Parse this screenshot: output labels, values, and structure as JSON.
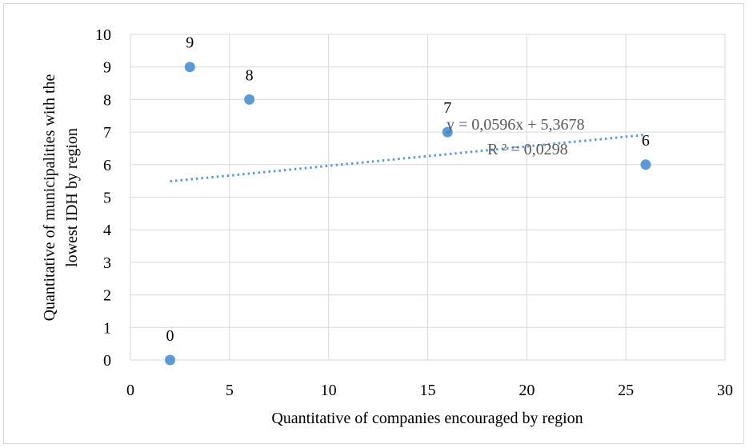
{
  "chart_data": {
    "type": "scatter",
    "xlabel": "Quantitative of companies encouraged by region",
    "ylabel_lines": [
      "Quantitative of municipalities  with the",
      "lowest IDH by region"
    ],
    "xlim": [
      0,
      30
    ],
    "ylim": [
      0,
      10
    ],
    "x_ticks": [
      "0",
      "5",
      "10",
      "15",
      "20",
      "25",
      "30"
    ],
    "y_ticks": [
      "0",
      "1",
      "2",
      "3",
      "4",
      "5",
      "6",
      "7",
      "8",
      "9",
      "10"
    ],
    "grid": true,
    "points": [
      {
        "x": 2,
        "y": 0,
        "label": "0"
      },
      {
        "x": 3,
        "y": 9,
        "label": "9"
      },
      {
        "x": 6,
        "y": 8,
        "label": "8"
      },
      {
        "x": 16,
        "y": 7,
        "label": "7"
      },
      {
        "x": 26,
        "y": 6,
        "label": "6"
      }
    ],
    "trendline": {
      "type": "linear",
      "slope": 0.0596,
      "intercept": 5.3678,
      "x_range": [
        2,
        26
      ],
      "equation": "y = 0,0596x  + 5,3678",
      "r_squared": "R ² = 0,0298"
    },
    "colors": {
      "marker": "#5b9bd5",
      "trendline": "#5b9bd5",
      "grid": "#d9d9d9",
      "equation_text": "#595959"
    }
  }
}
